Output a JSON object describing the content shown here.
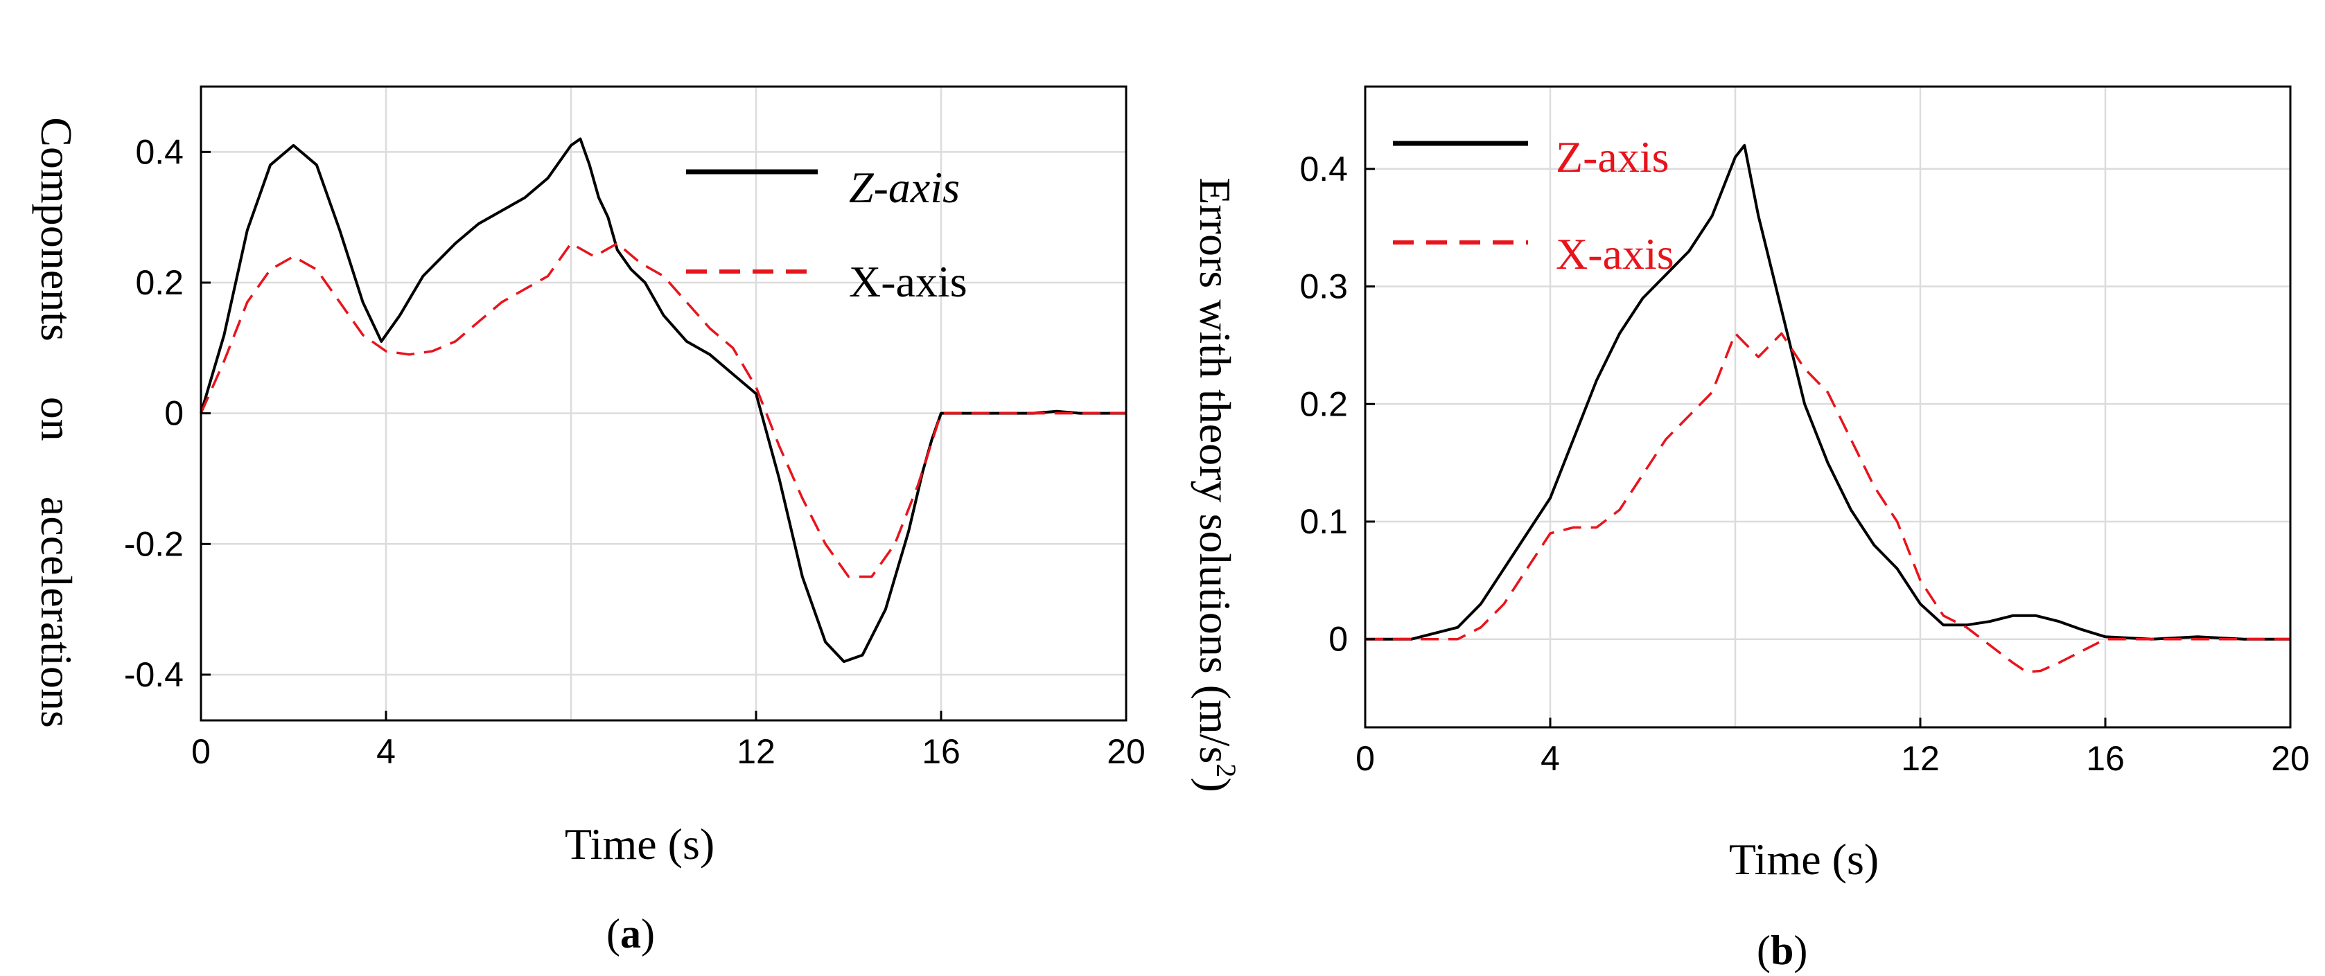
{
  "chart_data": [
    {
      "type": "line",
      "panel_label": "a",
      "title": "",
      "xlabel": "Time (s)",
      "ylabel": "Components     on     accelerations",
      "xlim": [
        0,
        20
      ],
      "ylim": [
        -0.47,
        0.5
      ],
      "xticks": [
        0,
        4,
        12,
        16,
        20
      ],
      "xtick_labels": [
        "0",
        "4",
        "12",
        "16",
        "20"
      ],
      "yticks": [
        0.4,
        0.2,
        0,
        -0.2,
        -0.4
      ],
      "ytick_labels": [
        "0.4",
        "0.2",
        "0",
        "-0.2",
        "-0.4"
      ],
      "xgrid": [
        0,
        4,
        8,
        12,
        16,
        20
      ],
      "ygrid": [
        -0.4,
        -0.2,
        0,
        0.2,
        0.4
      ],
      "grid": true,
      "legend_position": "top-right",
      "series": [
        {
          "name": "Z-axis",
          "color": "#000000",
          "style": "solid",
          "x": [
            0,
            0.5,
            1,
            1.5,
            2,
            2.5,
            3,
            3.5,
            3.9,
            4.3,
            4.8,
            5.5,
            6,
            6.5,
            7,
            7.5,
            8,
            8.2,
            8.4,
            8.6,
            8.8,
            9,
            9.3,
            9.6,
            10,
            10.5,
            11,
            11.5,
            12,
            12.5,
            13,
            13.5,
            13.9,
            14.3,
            14.8,
            15.3,
            15.6,
            15.8,
            16,
            17,
            18,
            18.5,
            19,
            20
          ],
          "y": [
            0,
            0.12,
            0.28,
            0.38,
            0.41,
            0.38,
            0.28,
            0.17,
            0.11,
            0.15,
            0.21,
            0.26,
            0.29,
            0.31,
            0.33,
            0.36,
            0.41,
            0.42,
            0.38,
            0.33,
            0.3,
            0.25,
            0.22,
            0.2,
            0.15,
            0.11,
            0.09,
            0.06,
            0.03,
            -0.1,
            -0.25,
            -0.35,
            -0.38,
            -0.37,
            -0.3,
            -0.18,
            -0.09,
            -0.04,
            0,
            0,
            0,
            0.003,
            0,
            0
          ]
        },
        {
          "name": "X-axis",
          "color": "#e8141c",
          "style": "dashed",
          "x": [
            0,
            0.5,
            1,
            1.5,
            2,
            2.5,
            3,
            3.5,
            4,
            4.5,
            5,
            5.5,
            6,
            6.5,
            7,
            7.5,
            8,
            8.5,
            9,
            9.5,
            10,
            10.5,
            11,
            11.5,
            12,
            12.5,
            13,
            13.5,
            14,
            14.5,
            15,
            15.5,
            16,
            17,
            18,
            19,
            20
          ],
          "y": [
            0,
            0.08,
            0.17,
            0.22,
            0.24,
            0.22,
            0.17,
            0.12,
            0.095,
            0.09,
            0.095,
            0.11,
            0.14,
            0.17,
            0.19,
            0.21,
            0.26,
            0.24,
            0.26,
            0.23,
            0.21,
            0.17,
            0.13,
            0.1,
            0.04,
            -0.05,
            -0.13,
            -0.2,
            -0.25,
            -0.25,
            -0.2,
            -0.11,
            0,
            0,
            0,
            0,
            0
          ]
        }
      ]
    },
    {
      "type": "line",
      "panel_label": "b",
      "title": "",
      "xlabel": "Time (s)",
      "ylabel": "Errors with theory solutions (m/s",
      "ylabel_superscript": "2",
      "ylabel_close": ")",
      "xlim": [
        0,
        20
      ],
      "ylim": [
        -0.075,
        0.47
      ],
      "xticks": [
        0,
        4,
        12,
        16,
        20
      ],
      "xtick_labels": [
        "0",
        "4",
        "12",
        "16",
        "20"
      ],
      "yticks": [
        0.4,
        0.3,
        0.2,
        0.1,
        0
      ],
      "ytick_labels": [
        "0.4",
        "0.3",
        "0.2",
        "0.1",
        "0"
      ],
      "xgrid": [
        0,
        4,
        8,
        12,
        16,
        20
      ],
      "ygrid": [
        0,
        0.1,
        0.2,
        0.3,
        0.4
      ],
      "grid": true,
      "legend_position": "top-left",
      "series": [
        {
          "name": "Z-axis",
          "color": "#000000",
          "style": "solid",
          "x": [
            0,
            1,
            2,
            2.5,
            3,
            3.5,
            4,
            4.5,
            5,
            5.5,
            6,
            6.5,
            7,
            7.5,
            8,
            8.2,
            8.5,
            9,
            9.5,
            10,
            10.5,
            11,
            11.5,
            12,
            12.5,
            13,
            13.5,
            14,
            14.5,
            15,
            15.5,
            16,
            17,
            18,
            19,
            20
          ],
          "y": [
            0,
            0,
            0.01,
            0.03,
            0.06,
            0.09,
            0.12,
            0.17,
            0.22,
            0.26,
            0.29,
            0.31,
            0.33,
            0.36,
            0.41,
            0.42,
            0.36,
            0.28,
            0.2,
            0.15,
            0.11,
            0.08,
            0.06,
            0.03,
            0.012,
            0.012,
            0.015,
            0.02,
            0.02,
            0.015,
            0.008,
            0.002,
            0,
            0.002,
            0,
            0
          ]
        },
        {
          "name": "X-axis",
          "color": "#e8141c",
          "style": "dashed",
          "x": [
            0,
            1,
            2,
            2.5,
            3,
            3.5,
            4,
            4.5,
            5,
            5.5,
            6,
            6.5,
            7,
            7.5,
            8,
            8.5,
            9,
            9.5,
            10,
            10.5,
            11,
            11.5,
            12,
            12.5,
            13,
            13.5,
            14,
            14.3,
            14.6,
            15,
            15.5,
            16,
            17,
            18,
            19,
            20
          ],
          "y": [
            0,
            0,
            0,
            0.01,
            0.03,
            0.06,
            0.09,
            0.095,
            0.095,
            0.11,
            0.14,
            0.17,
            0.19,
            0.21,
            0.26,
            0.24,
            0.26,
            0.23,
            0.21,
            0.17,
            0.13,
            0.1,
            0.05,
            0.02,
            0.01,
            -0.005,
            -0.02,
            -0.028,
            -0.027,
            -0.02,
            -0.01,
            0,
            0,
            0,
            0,
            0
          ]
        }
      ]
    }
  ]
}
